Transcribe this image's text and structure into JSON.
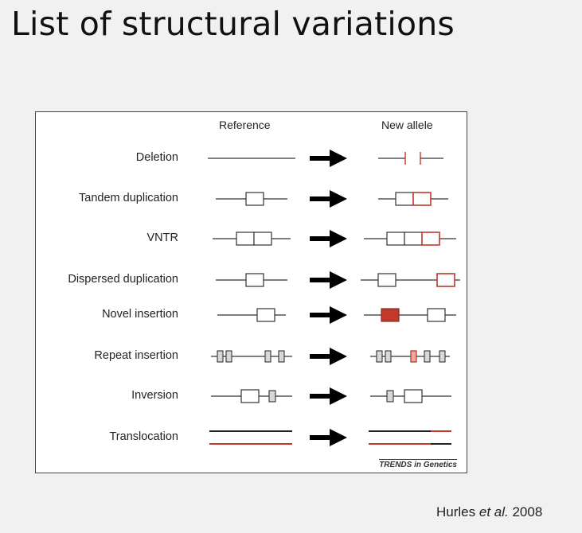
{
  "slide": {
    "title": "List of structural variations"
  },
  "figure": {
    "reference_header": "Reference",
    "new_allele_header": "New allele",
    "rows": [
      {
        "label": "Deletion"
      },
      {
        "label": "Tandem duplication"
      },
      {
        "label": "VNTR"
      },
      {
        "label": "Dispersed duplication"
      },
      {
        "label": "Novel insertion"
      },
      {
        "label": "Repeat insertion"
      },
      {
        "label": "Inversion"
      },
      {
        "label": "Translocation"
      }
    ],
    "journal_credit": "TRENDS in Genetics"
  },
  "citation": {
    "authors": "Hurles",
    "etal": "et al.",
    "year": "2008"
  },
  "colors": {
    "highlight_red": "#c0392b",
    "line_dark": "#333333",
    "arrow_black": "#000000"
  }
}
